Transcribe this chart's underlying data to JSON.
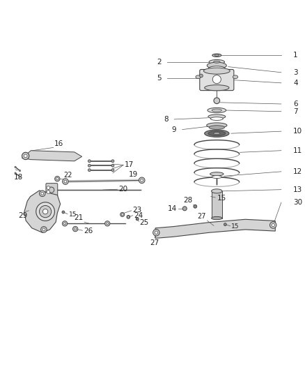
{
  "bg_color": "#ffffff",
  "line_color": "#555555",
  "label_color": "#222222",
  "fig_width": 4.38,
  "fig_height": 5.33,
  "dpi": 100
}
